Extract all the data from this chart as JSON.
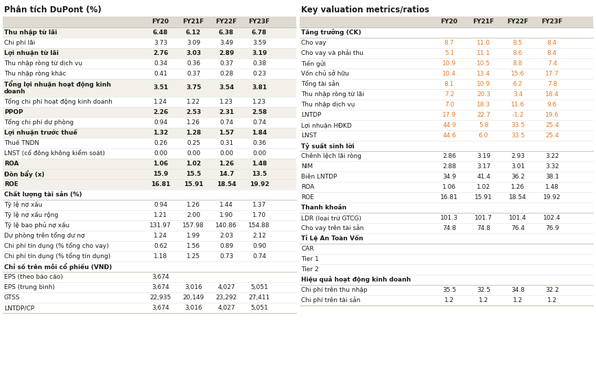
{
  "title_left": "Phân tích DuPont (%)",
  "title_right": "Key valuation metrics/ratios",
  "header_bg": "#dedad2",
  "header_cols": [
    "FY20",
    "FY21F",
    "FY22F",
    "FY23F"
  ],
  "left_table": {
    "rows": [
      {
        "label": "Thu nhập từ lãi",
        "values": [
          "6.48",
          "6.12",
          "6.38",
          "6.78"
        ],
        "bold": true,
        "section": false,
        "orange": false
      },
      {
        "label": "Chi phí lãi",
        "values": [
          "3.73",
          "3.09",
          "3.49",
          "3.59"
        ],
        "bold": false,
        "section": false,
        "orange": false
      },
      {
        "label": "Lợi nhuận từ lãi",
        "values": [
          "2.76",
          "3.03",
          "2.89",
          "3.19"
        ],
        "bold": true,
        "section": false,
        "orange": false
      },
      {
        "label": "Thu nhập ròng từ dịch vụ",
        "values": [
          "0.34",
          "0.36",
          "0.37",
          "0.38"
        ],
        "bold": false,
        "section": false,
        "orange": false
      },
      {
        "label": "Thu nhập ròng khác",
        "values": [
          "0.41",
          "0.37",
          "0.28",
          "0.23"
        ],
        "bold": false,
        "section": false,
        "orange": false
      },
      {
        "label": "Tổng lợi nhuận hoạt động kinh doanh",
        "values": [
          "3.51",
          "3.75",
          "3.54",
          "3.81"
        ],
        "bold": true,
        "section": false,
        "orange": false,
        "wrap": true
      },
      {
        "label": "Tổng chi phí hoạt động kinh doanh",
        "values": [
          "1.24",
          "1.22",
          "1.23",
          "1.23"
        ],
        "bold": false,
        "section": false,
        "orange": false
      },
      {
        "label": "PPOP",
        "values": [
          "2.26",
          "2.53",
          "2.31",
          "2.58"
        ],
        "bold": true,
        "section": false,
        "orange": false
      },
      {
        "label": "Tổng chi phí dự phòng",
        "values": [
          "0.94",
          "1.26",
          "0.74",
          "0.74"
        ],
        "bold": false,
        "section": false,
        "orange": false
      },
      {
        "label": "Lợi nhuận trước thuế",
        "values": [
          "1.32",
          "1.28",
          "1.57",
          "1.84"
        ],
        "bold": true,
        "section": false,
        "orange": false
      },
      {
        "label": "Thuế TNDN",
        "values": [
          "0.26",
          "0.25",
          "0.31",
          "0.36"
        ],
        "bold": false,
        "section": false,
        "orange": false
      },
      {
        "label": "LNST (cổ đông không kiểm soát)",
        "values": [
          "0.00",
          "0.00",
          "0.00",
          "0.00"
        ],
        "bold": false,
        "section": false,
        "orange": false
      },
      {
        "label": "ROA",
        "values": [
          "1.06",
          "1.02",
          "1.26",
          "1.48"
        ],
        "bold": true,
        "section": false,
        "orange": false
      },
      {
        "label": "Đòn bẩy (x)",
        "values": [
          "15.9",
          "15.5",
          "14.7",
          "13.5"
        ],
        "bold": true,
        "section": false,
        "orange": false
      },
      {
        "label": "ROE",
        "values": [
          "16.81",
          "15.91",
          "18.54",
          "19.92"
        ],
        "bold": true,
        "section": false,
        "orange": false
      },
      {
        "label": "Chất lượng tài sản (%)",
        "values": [
          "",
          "",
          "",
          ""
        ],
        "bold": false,
        "section": true,
        "orange": false
      },
      {
        "label": "Tỷ lệ nợ xấu",
        "values": [
          "0.94",
          "1.26",
          "1.44",
          "1.37"
        ],
        "bold": false,
        "section": false,
        "orange": false
      },
      {
        "label": "Tỷ lệ nợ xấu rộng",
        "values": [
          "1.21",
          "2.00",
          "1.90",
          "1.70"
        ],
        "bold": false,
        "section": false,
        "orange": false
      },
      {
        "label": "Tỷ lệ bao phủ nợ xấu",
        "values": [
          "131.97",
          "157.98",
          "140.86",
          "154.88"
        ],
        "bold": false,
        "section": false,
        "orange": false
      },
      {
        "label": "Dự phòng trên tổng dư nợ",
        "values": [
          "1.24",
          "1.99",
          "2.03",
          "2.12"
        ],
        "bold": false,
        "section": false,
        "orange": false
      },
      {
        "label": "Chi phí tín dụng (% tổng cho vay)",
        "values": [
          "0.62",
          "1.56",
          "0.89",
          "0.90"
        ],
        "bold": false,
        "section": false,
        "orange": false
      },
      {
        "label": "Chi phí tín dụng (% tổng tín dụng)",
        "values": [
          "1.18",
          "1.25",
          "0.73",
          "0.74"
        ],
        "bold": false,
        "section": false,
        "orange": false
      },
      {
        "label": "Chỉ số trên mỗi cổ phiếu (VNĐ)",
        "values": [
          "",
          "",
          "",
          ""
        ],
        "bold": true,
        "section": true,
        "orange": false
      },
      {
        "label": "EPS (theo báo cáo)",
        "values": [
          "3,674",
          "",
          "",
          ""
        ],
        "bold": false,
        "section": false,
        "orange": false
      },
      {
        "label": "EPS (trung bình)",
        "values": [
          "3,674",
          "3,016",
          "4,027",
          "5,051"
        ],
        "bold": false,
        "section": false,
        "orange": false
      },
      {
        "label": "GTSS",
        "values": [
          "22,935",
          "20,149",
          "23,292",
          "27,411"
        ],
        "bold": false,
        "section": false,
        "orange": false
      },
      {
        "label": "LNTDP/CP",
        "values": [
          "3,674",
          "3,016",
          "4,027",
          "5,051"
        ],
        "bold": false,
        "section": false,
        "orange": false
      }
    ]
  },
  "right_table": {
    "rows": [
      {
        "label": "Tăng trưởng (CK)",
        "values": [
          "",
          "",
          "",
          ""
        ],
        "bold": true,
        "section": true,
        "orange": false
      },
      {
        "label": "Cho vay",
        "values": [
          "8.7",
          "11.0",
          "8.5",
          "8.4"
        ],
        "bold": false,
        "section": false,
        "orange": true
      },
      {
        "label": "Cho vay và phải thu",
        "values": [
          "5.1",
          "11.1",
          "8.6",
          "8.4"
        ],
        "bold": false,
        "section": false,
        "orange": true
      },
      {
        "label": "Tiền gửi",
        "values": [
          "10.9",
          "10.5",
          "8.8",
          "7.4"
        ],
        "bold": false,
        "section": false,
        "orange": true
      },
      {
        "label": "Vốn chủ sở hữu",
        "values": [
          "10.4",
          "13.4",
          "15.6",
          "17.7"
        ],
        "bold": false,
        "section": false,
        "orange": true
      },
      {
        "label": "Tổng tài sản",
        "values": [
          "8.1",
          "10.9",
          "6.2",
          "7.8"
        ],
        "bold": false,
        "section": false,
        "orange": true
      },
      {
        "label": "Thu nhập ròng từ lãi",
        "values": [
          "7.2",
          "20.3",
          "3.4",
          "18.4"
        ],
        "bold": false,
        "section": false,
        "orange": true
      },
      {
        "label": "Thu nhập dịch vụ",
        "values": [
          "7.0",
          "18.3",
          "11.6",
          "9.6"
        ],
        "bold": false,
        "section": false,
        "orange": true
      },
      {
        "label": "LNTDP",
        "values": [
          "17.9",
          "22.7",
          "-1.2",
          "19.6"
        ],
        "bold": false,
        "section": false,
        "orange": true
      },
      {
        "label": "Lợi nhuận HĐKD",
        "values": [
          "44.9",
          "5.8",
          "33.5",
          "25.4"
        ],
        "bold": false,
        "section": false,
        "orange": true
      },
      {
        "label": "LNST",
        "values": [
          "44.6",
          "6.0",
          "33.5",
          "25.4"
        ],
        "bold": false,
        "section": false,
        "orange": true
      },
      {
        "label": "Tỷ suất sinh lời",
        "values": [
          "",
          "",
          "",
          ""
        ],
        "bold": true,
        "section": true,
        "orange": false
      },
      {
        "label": "Chênh lệch lãi ròng",
        "values": [
          "2.86",
          "3.19",
          "2.93",
          "3.22"
        ],
        "bold": false,
        "section": false,
        "orange": false
      },
      {
        "label": "NIM",
        "values": [
          "2.88",
          "3.17",
          "3.01",
          "3.32"
        ],
        "bold": false,
        "section": false,
        "orange": false
      },
      {
        "label": "Biên LNTDP",
        "values": [
          "34.9",
          "41.4",
          "36.2",
          "38.1"
        ],
        "bold": false,
        "section": false,
        "orange": false
      },
      {
        "label": "ROA",
        "values": [
          "1.06",
          "1.02",
          "1.26",
          "1.48"
        ],
        "bold": false,
        "section": false,
        "orange": false
      },
      {
        "label": "ROE",
        "values": [
          "16.81",
          "15.91",
          "18.54",
          "19.92"
        ],
        "bold": false,
        "section": false,
        "orange": false
      },
      {
        "label": "Thanh khoản",
        "values": [
          "",
          "",
          "",
          ""
        ],
        "bold": true,
        "section": true,
        "orange": false
      },
      {
        "label": "LDR (loại trừ GTCG)",
        "values": [
          "101.3",
          "101.7",
          "101.4",
          "102.4"
        ],
        "bold": false,
        "section": false,
        "orange": false
      },
      {
        "label": "Cho vay trên tài sản",
        "values": [
          "74.8",
          "74.8",
          "76.4",
          "76.9"
        ],
        "bold": false,
        "section": false,
        "orange": false
      },
      {
        "label": "Tỉ Lệ An Toàn Vốn",
        "values": [
          "",
          "",
          "",
          ""
        ],
        "bold": true,
        "section": true,
        "orange": false
      },
      {
        "label": "CAR",
        "values": [
          "",
          "",
          "",
          ""
        ],
        "bold": false,
        "section": false,
        "orange": false
      },
      {
        "label": "Tier 1",
        "values": [
          "",
          "",
          "",
          ""
        ],
        "bold": false,
        "section": false,
        "orange": false
      },
      {
        "label": "Tier 2",
        "values": [
          "",
          "",
          "",
          ""
        ],
        "bold": false,
        "section": false,
        "orange": false
      },
      {
        "label": "Hiệu quả hoạt động kinh doanh",
        "values": [
          "",
          "",
          "",
          ""
        ],
        "bold": true,
        "section": true,
        "orange": false
      },
      {
        "label": "Chi phí trên thu nhập",
        "values": [
          "35.5",
          "32.5",
          "34.8",
          "32.2"
        ],
        "bold": false,
        "section": false,
        "orange": false
      },
      {
        "label": "Chi phí trên tài sản",
        "values": [
          "1.2",
          "1.2",
          "1.2",
          "1.2"
        ],
        "bold": false,
        "section": false,
        "orange": false
      }
    ]
  },
  "bg_color": "#ffffff",
  "text_color": "#1a1a1a",
  "orange_color": "#e87722",
  "header_text_color": "#1a1a1a",
  "divider_color": "#c8c8b8",
  "row_line_color": "#e0e0d8",
  "bold_bg": "#f2f0e8"
}
